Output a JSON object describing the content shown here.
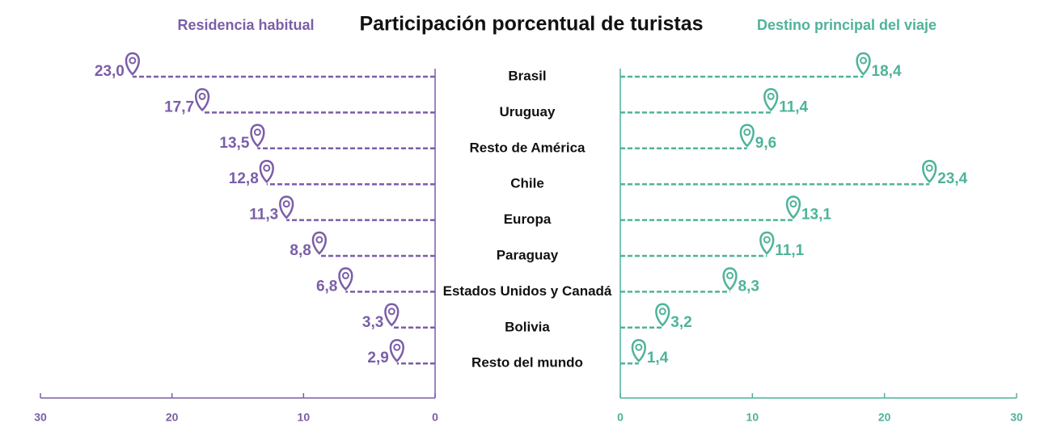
{
  "chart_data": {
    "type": "butterfly",
    "title": "Participación porcentual de turistas",
    "categories": [
      "Brasil",
      "Uruguay",
      "Resto de América",
      "Chile",
      "Europa",
      "Paraguay",
      "Estados Unidos y Canadá",
      "Bolivia",
      "Resto del mundo"
    ],
    "series": [
      {
        "name": "Residencia habitual",
        "color": "#7b5ea7",
        "values": [
          23.0,
          17.7,
          13.5,
          12.8,
          11.3,
          8.8,
          6.8,
          3.3,
          2.9
        ],
        "value_labels": [
          "23,0",
          "17,7",
          "13,5",
          "12,8",
          "11,3",
          "8,8",
          "6,8",
          "3,3",
          "2,9"
        ],
        "xlim": [
          30,
          0
        ],
        "xticks": [
          30,
          20,
          10,
          0
        ]
      },
      {
        "name": "Destino principal del viaje",
        "color": "#4fb39a",
        "values": [
          18.4,
          11.4,
          9.6,
          23.4,
          13.1,
          11.1,
          8.3,
          3.2,
          1.4
        ],
        "value_labels": [
          "18,4",
          "11,4",
          "9,6",
          "23,4",
          "13,1",
          "11,1",
          "8,3",
          "3,2",
          "1,4"
        ],
        "xlim": [
          0,
          30
        ],
        "xticks": [
          0,
          10,
          20,
          30
        ]
      }
    ]
  }
}
